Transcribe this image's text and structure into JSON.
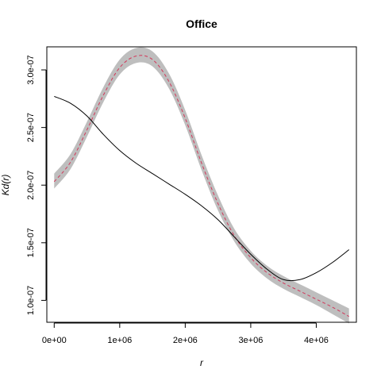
{
  "chart_data": {
    "type": "line",
    "title": "Office",
    "xlabel": "r",
    "ylabel": "Kd(r)",
    "xlim": [
      -112500,
      4612500
    ],
    "ylim": [
      8.1e-08,
      3.2e-07
    ],
    "x_ticks": [
      0,
      1000000,
      2000000,
      3000000,
      4000000
    ],
    "x_tick_labels": [
      "0e+00",
      "1e+06",
      "2e+06",
      "3e+06",
      "4e+06"
    ],
    "y_ticks": [
      1e-07,
      1.5e-07,
      2e-07,
      2.5e-07,
      3e-07
    ],
    "y_tick_labels": [
      "1.0e-07",
      "1.5e-07",
      "2.0e-07",
      "2.5e-07",
      "3.0e-07"
    ],
    "grid": false,
    "colors": {
      "observed": "#000000",
      "envelope": "#bebebe",
      "mean": "#d2385a"
    },
    "x": [
      0,
      250000,
      500000,
      750000,
      1000000,
      1250000,
      1500000,
      1750000,
      2000000,
      2250000,
      2500000,
      2750000,
      3000000,
      3250000,
      3500000,
      3750000,
      4000000,
      4250000,
      4500000
    ],
    "series": [
      {
        "values": [
          2.77e-07,
          2.71e-07,
          2.6e-07,
          2.44e-07,
          2.3e-07,
          2.19e-07,
          2.1e-07,
          2.01e-07,
          1.92e-07,
          1.82e-07,
          1.7e-07,
          1.55e-07,
          1.4e-07,
          1.27e-07,
          1.18e-07,
          1.18e-07,
          1.24e-07,
          1.33e-07,
          1.44e-07
        ]
      },
      {
        "values": [
          2.03e-07,
          2.2e-07,
          2.48e-07,
          2.78e-07,
          3.02e-07,
          3.12e-07,
          3.09e-07,
          2.9e-07,
          2.58e-07,
          2.19e-07,
          1.84e-07,
          1.56e-07,
          1.37e-07,
          1.24e-07,
          1.15e-07,
          1.08e-07,
          1.01e-07,
          9.4e-08,
          8.6e-08
        ]
      }
    ],
    "envelope": {
      "x": [
        0,
        250000,
        500000,
        750000,
        1000000,
        1250000,
        1500000,
        1750000,
        2000000,
        2250000,
        2500000,
        2750000,
        3000000,
        3250000,
        3500000,
        3750000,
        4000000,
        4250000,
        4500000
      ],
      "lower": [
        1.97e-07,
        2.14e-07,
        2.42e-07,
        2.72e-07,
        2.96e-07,
        3.06e-07,
        3.03e-07,
        2.84e-07,
        2.52e-07,
        2.13e-07,
        1.78e-07,
        1.51e-07,
        1.32e-07,
        1.19e-07,
        1.1e-07,
        1.03e-07,
        9.6e-08,
        8.8e-08,
        8e-08
      ],
      "upper": [
        2.1e-07,
        2.27e-07,
        2.55e-07,
        2.85e-07,
        3.09e-07,
        3.19e-07,
        3.16e-07,
        2.97e-07,
        2.65e-07,
        2.26e-07,
        1.91e-07,
        1.62e-07,
        1.43e-07,
        1.3e-07,
        1.21e-07,
        1.14e-07,
        1.07e-07,
        1e-07,
        9.3e-08
      ]
    }
  }
}
